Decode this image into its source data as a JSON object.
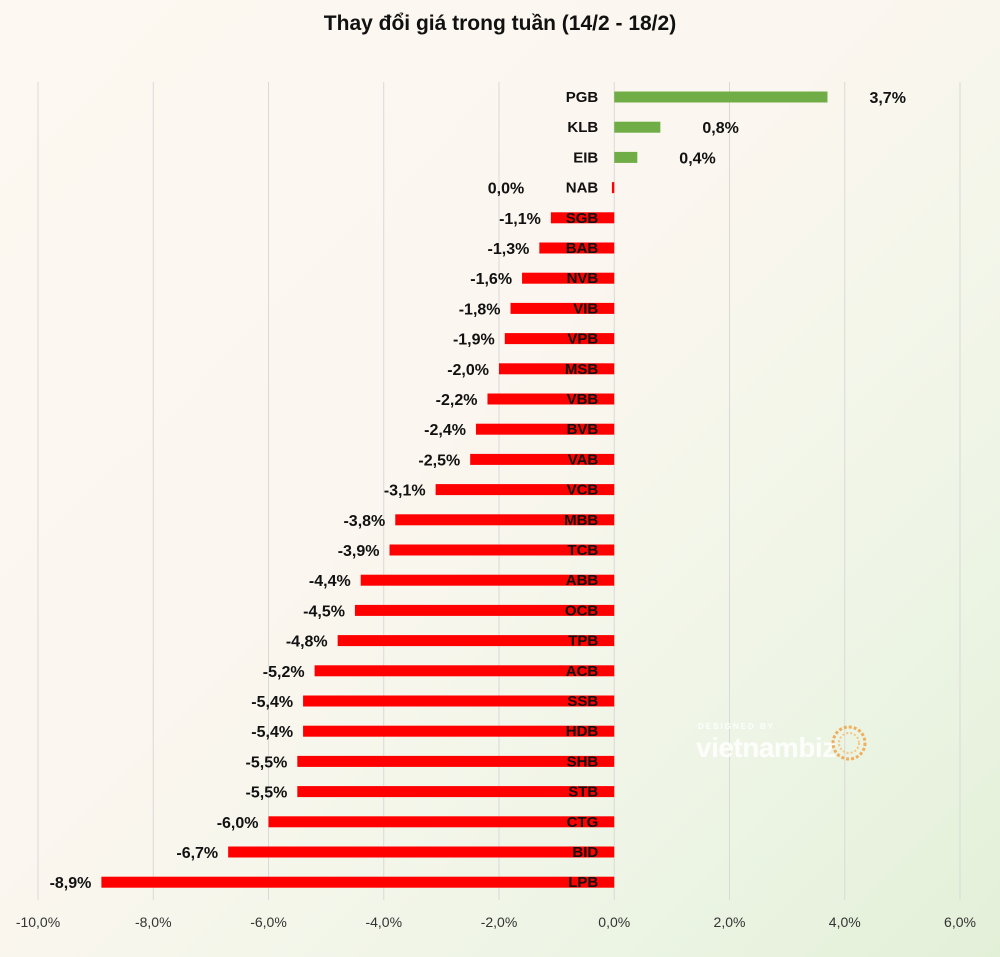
{
  "chart_data": {
    "type": "bar",
    "orientation": "horizontal",
    "title": "Thay đổi giá trong tuần (14/2 - 18/2)",
    "xlim": [
      -10,
      6
    ],
    "x_ticks": [
      "-10,0%",
      "-8,0%",
      "-6,0%",
      "-4,0%",
      "-2,0%",
      "0,0%",
      "2,0%",
      "4,0%",
      "6,0%"
    ],
    "grid": "vertical",
    "positive_color": "#70ad47",
    "negative_color": "#ff0000",
    "bars": [
      {
        "category": "PGB",
        "value": 3.7,
        "label": "3,7%"
      },
      {
        "category": "KLB",
        "value": 0.8,
        "label": "0,8%"
      },
      {
        "category": "EIB",
        "value": 0.4,
        "label": "0,4%"
      },
      {
        "category": "NAB",
        "value": -0.04,
        "label": "0,0%"
      },
      {
        "category": "SGB",
        "value": -1.1,
        "label": "-1,1%"
      },
      {
        "category": "BAB",
        "value": -1.3,
        "label": "-1,3%"
      },
      {
        "category": "NVB",
        "value": -1.6,
        "label": "-1,6%"
      },
      {
        "category": "VIB",
        "value": -1.8,
        "label": "-1,8%"
      },
      {
        "category": "VPB",
        "value": -1.9,
        "label": "-1,9%"
      },
      {
        "category": "MSB",
        "value": -2.0,
        "label": "-2,0%"
      },
      {
        "category": "VBB",
        "value": -2.2,
        "label": "-2,2%"
      },
      {
        "category": "BVB",
        "value": -2.4,
        "label": "-2,4%"
      },
      {
        "category": "VAB",
        "value": -2.5,
        "label": "-2,5%"
      },
      {
        "category": "VCB",
        "value": -3.1,
        "label": "-3,1%"
      },
      {
        "category": "MBB",
        "value": -3.8,
        "label": "-3,8%"
      },
      {
        "category": "TCB",
        "value": -3.9,
        "label": "-3,9%"
      },
      {
        "category": "ABB",
        "value": -4.4,
        "label": "-4,4%"
      },
      {
        "category": "OCB",
        "value": -4.5,
        "label": "-4,5%"
      },
      {
        "category": "TPB",
        "value": -4.8,
        "label": "-4,8%"
      },
      {
        "category": "ACB",
        "value": -5.2,
        "label": "-5,2%"
      },
      {
        "category": "SSB",
        "value": -5.4,
        "label": "-5,4%"
      },
      {
        "category": "HDB",
        "value": -5.4,
        "label": "-5,4%"
      },
      {
        "category": "SHB",
        "value": -5.5,
        "label": "-5,5%"
      },
      {
        "category": "STB",
        "value": -5.5,
        "label": "-5,5%"
      },
      {
        "category": "CTG",
        "value": -6.0,
        "label": "-6,0%"
      },
      {
        "category": "BID",
        "value": -6.7,
        "label": "-6,7%"
      },
      {
        "category": "LPB",
        "value": -8.9,
        "label": "-8,9%"
      }
    ]
  },
  "watermark": {
    "small_text": "DESIGNED BY",
    "brand_text": "vietnambiz",
    "icon": "sun-swirl-icon"
  }
}
